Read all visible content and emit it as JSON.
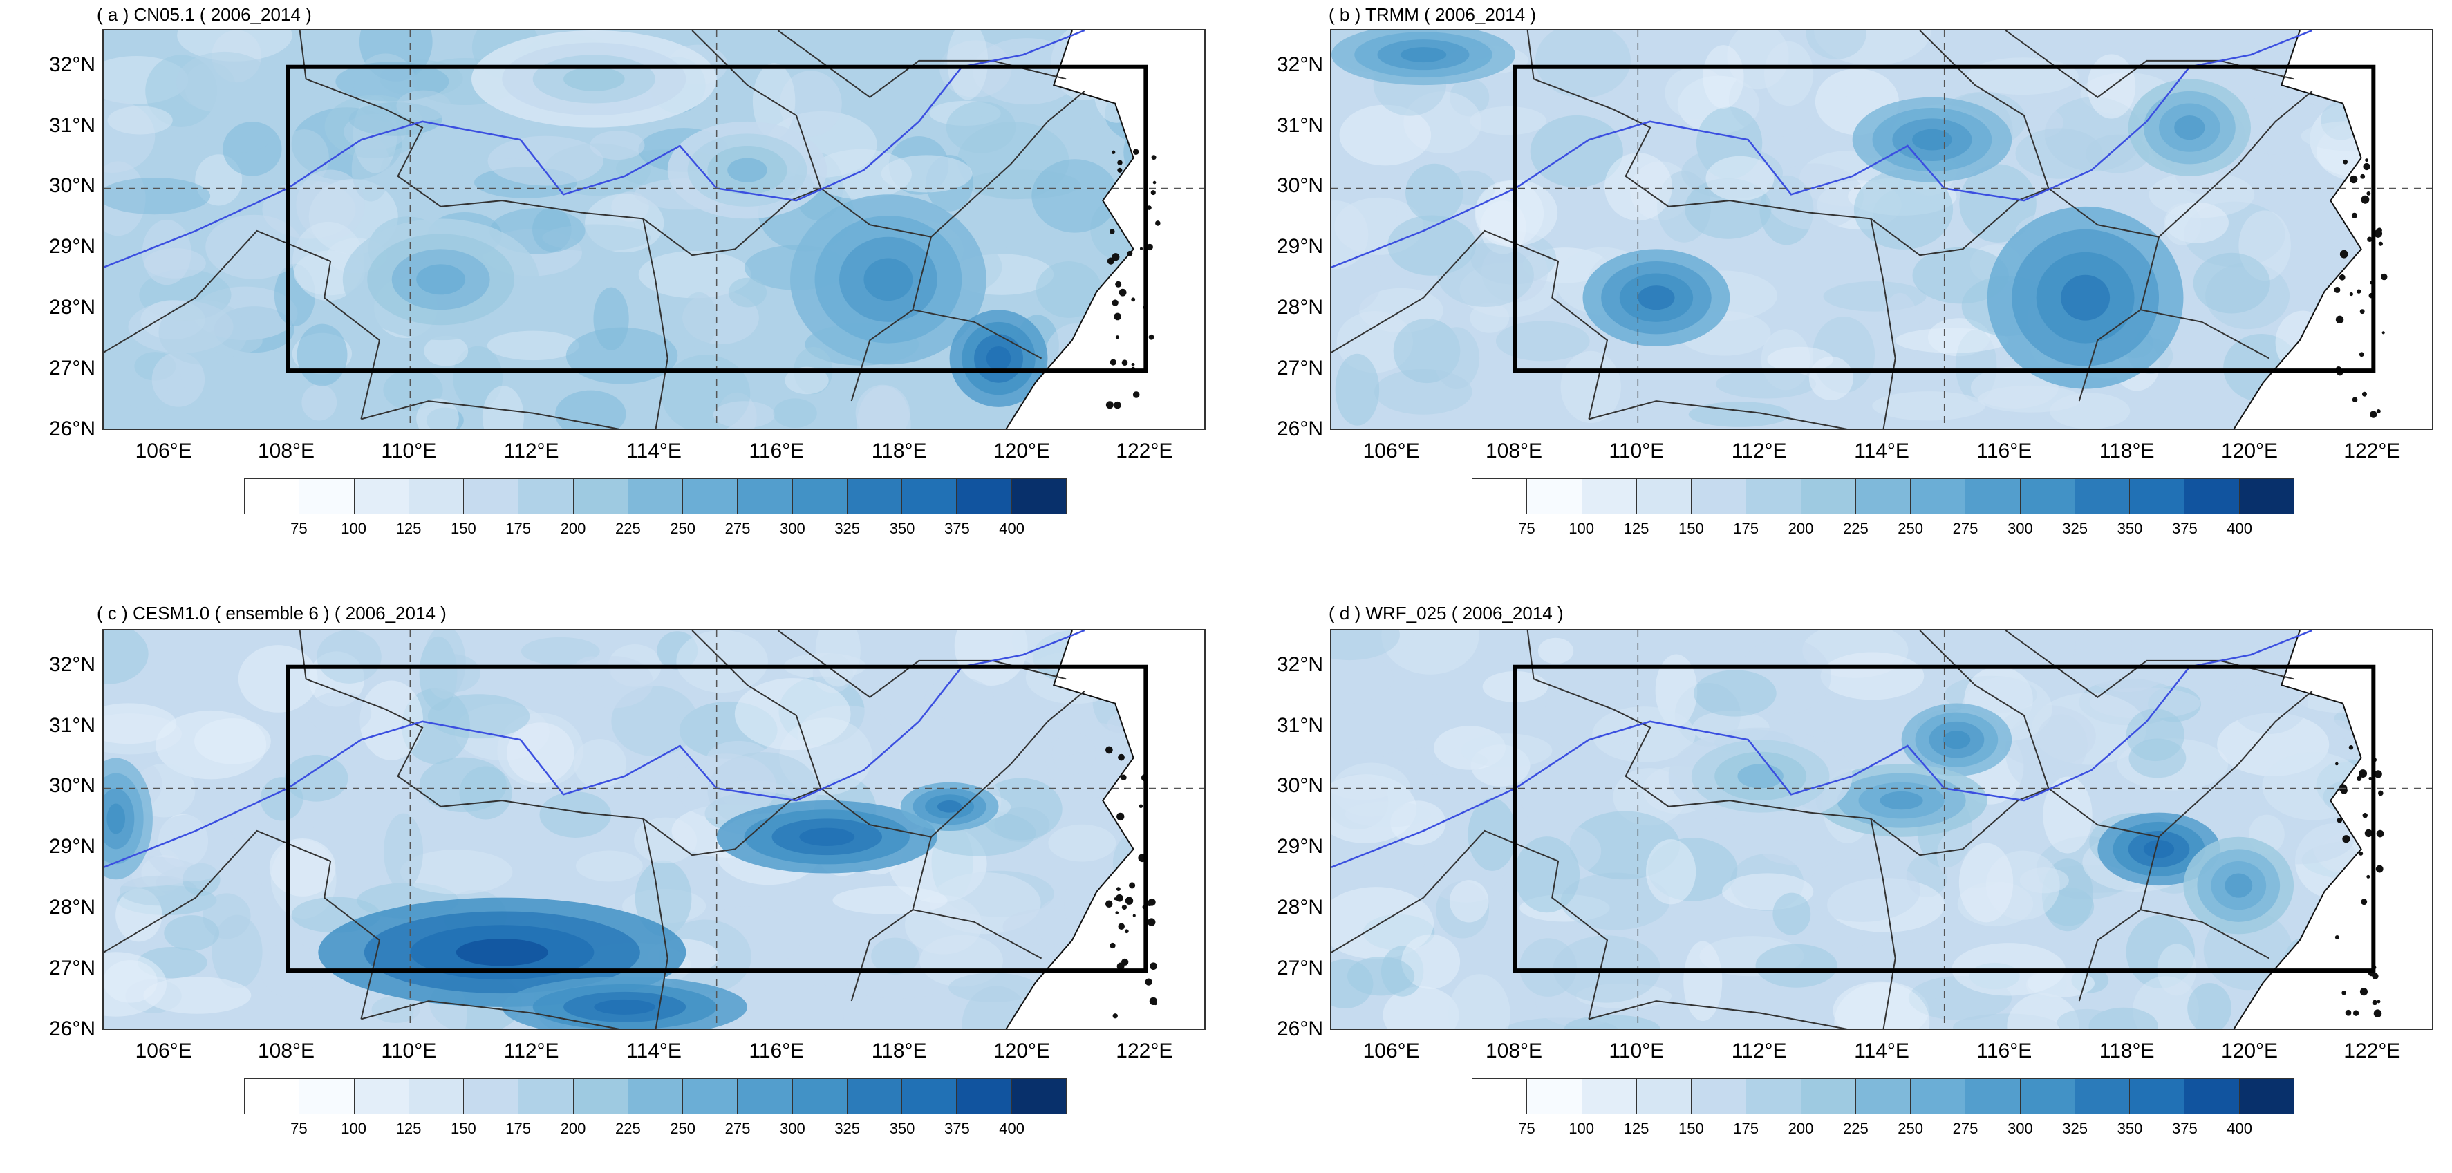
{
  "panels": [
    {
      "id": "a",
      "title": "( a ) CN05.1 ( 2006_2014 )"
    },
    {
      "id": "b",
      "title": "( b ) TRMM ( 2006_2014 )"
    },
    {
      "id": "c",
      "title": "( c ) CESM1.0 ( ensemble 6 ) ( 2006_2014 )"
    },
    {
      "id": "d",
      "title": "( d ) WRF_025 ( 2006_2014 )"
    }
  ],
  "lat_labels": [
    "32°N",
    "31°N",
    "30°N",
    "29°N",
    "28°N",
    "27°N",
    "26°N"
  ],
  "lon_labels": [
    "106°E",
    "108°E",
    "110°E",
    "112°E",
    "114°E",
    "116°E",
    "118°E",
    "120°E",
    "122°E"
  ],
  "colorbar": {
    "labels": [
      "75",
      "100",
      "125",
      "150",
      "175",
      "200",
      "225",
      "250",
      "275",
      "300",
      "325",
      "350",
      "375",
      "400"
    ],
    "colors": [
      "#f7fbff",
      "#e3eef9",
      "#d6e6f4",
      "#c6dbef",
      "#b0d2e8",
      "#9ecae1",
      "#7fb9da",
      "#6baed6",
      "#539ecd",
      "#4292c6",
      "#2b7bba",
      "#2171b5",
      "#11549f",
      "#08306b"
    ]
  },
  "domain": {
    "lon_min": 105,
    "lon_max": 123,
    "lat_min": 26,
    "lat_max": 32.6
  },
  "study_box": {
    "lon_min": 108,
    "lon_max": 122,
    "lat_min": 27,
    "lat_max": 32
  },
  "reference_lines": {
    "lat": 30,
    "lons": [
      110,
      115
    ]
  }
}
